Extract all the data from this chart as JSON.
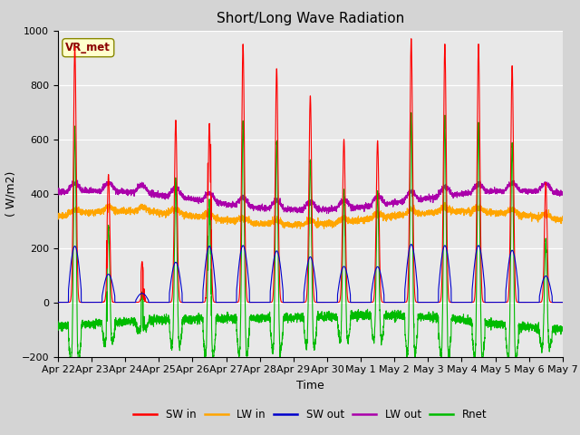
{
  "title": "Short/Long Wave Radiation",
  "xlabel": "Time",
  "ylabel": "( W/m2)",
  "ylim": [
    -200,
    1000
  ],
  "yticks": [
    -200,
    0,
    200,
    400,
    600,
    800,
    1000
  ],
  "fig_bg_color": "#d4d4d4",
  "plot_bg_color": "#e8e8e8",
  "colors": {
    "SW_in": "#ff0000",
    "LW_in": "#ffa500",
    "SW_out": "#0000cc",
    "LW_out": "#aa00aa",
    "Rnet": "#00bb00"
  },
  "legend_labels": [
    "SW in",
    "LW in",
    "SW out",
    "LW out",
    "Rnet"
  ],
  "annotation_text": "VR_met",
  "x_tick_labels": [
    "Apr 22",
    "Apr 23",
    "Apr 24",
    "Apr 25",
    "Apr 26",
    "Apr 27",
    "Apr 28",
    "Apr 29",
    "Apr 30",
    "May 1",
    "May 2",
    "May 3",
    "May 4",
    "May 5",
    "May 6",
    "May 7"
  ],
  "n_days": 15,
  "points_per_day": 288,
  "day_start": 0.28,
  "day_end": 0.72
}
